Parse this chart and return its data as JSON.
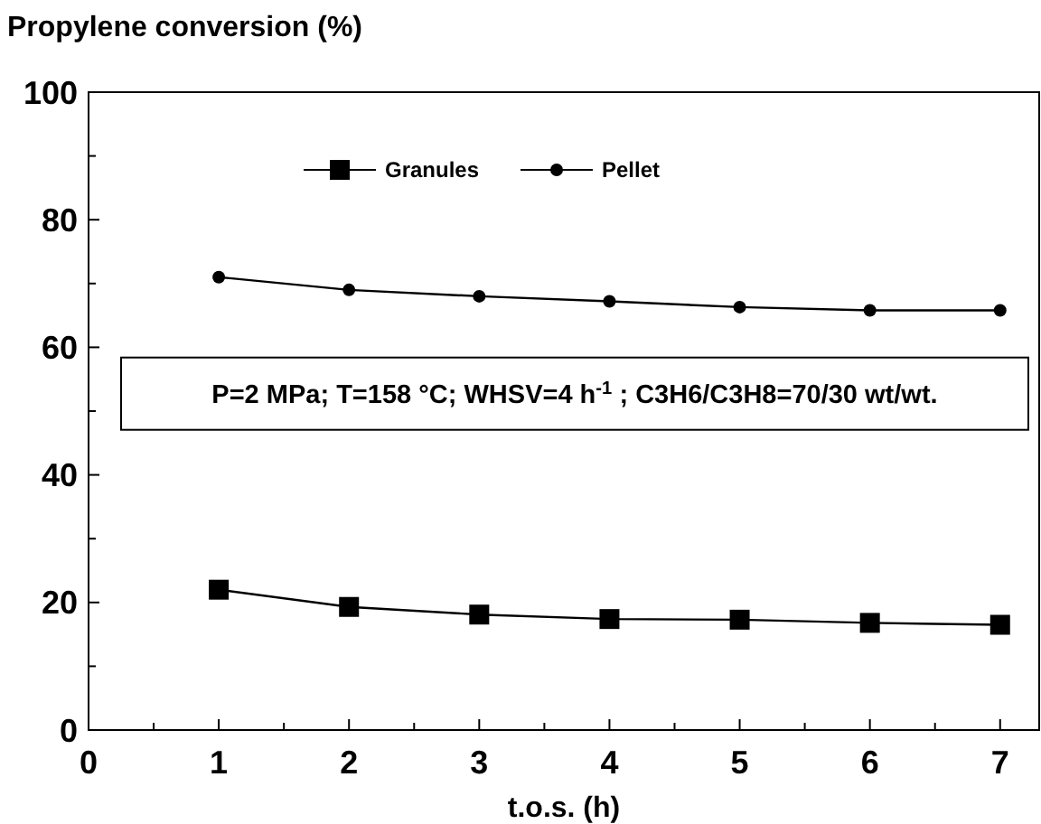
{
  "chart_data": {
    "type": "line",
    "xlabel": "t.o.s. (h)",
    "ylabel": "Propylene conversion (%)",
    "x": [
      1,
      2,
      3,
      4,
      5,
      6,
      7
    ],
    "series": [
      {
        "name": "Granules",
        "color": "#000000",
        "marker": "square",
        "values": [
          22,
          19.3,
          18.1,
          17.4,
          17.3,
          16.8,
          16.5
        ]
      },
      {
        "name": "Pellet",
        "color": "#000000",
        "marker": "circle",
        "values": [
          71,
          69,
          68,
          67.2,
          66.3,
          65.8,
          65.8
        ]
      }
    ],
    "xlim": [
      0,
      7.3
    ],
    "ylim": [
      0,
      100
    ],
    "xticks": [
      0,
      {
        "value": 0.5,
        "label": null
      },
      1,
      {
        "value": 1.5,
        "label": null
      },
      2,
      {
        "value": 2.5,
        "label": null
      },
      3,
      {
        "value": 3.5,
        "label": null
      },
      4,
      {
        "value": 4.5,
        "label": null
      },
      5,
      {
        "value": 5.5,
        "label": null
      },
      6,
      {
        "value": 6.5,
        "label": null
      },
      7
    ],
    "yticks": [
      0,
      {
        "value": 10,
        "label": null
      },
      20,
      {
        "value": 30,
        "label": null
      },
      40,
      {
        "value": 50,
        "label": null
      },
      60,
      {
        "value": 70,
        "label": null
      },
      80,
      {
        "value": 90,
        "label": null
      },
      100
    ],
    "annotations": [
      "P=2 MPa; T=158 °C; WHSV=4 h$^{-1}$ ; C3H6/C3H8=70/30 wt/wt."
    ],
    "legend": "top",
    "grid": false,
    "line_style": "solid"
  }
}
